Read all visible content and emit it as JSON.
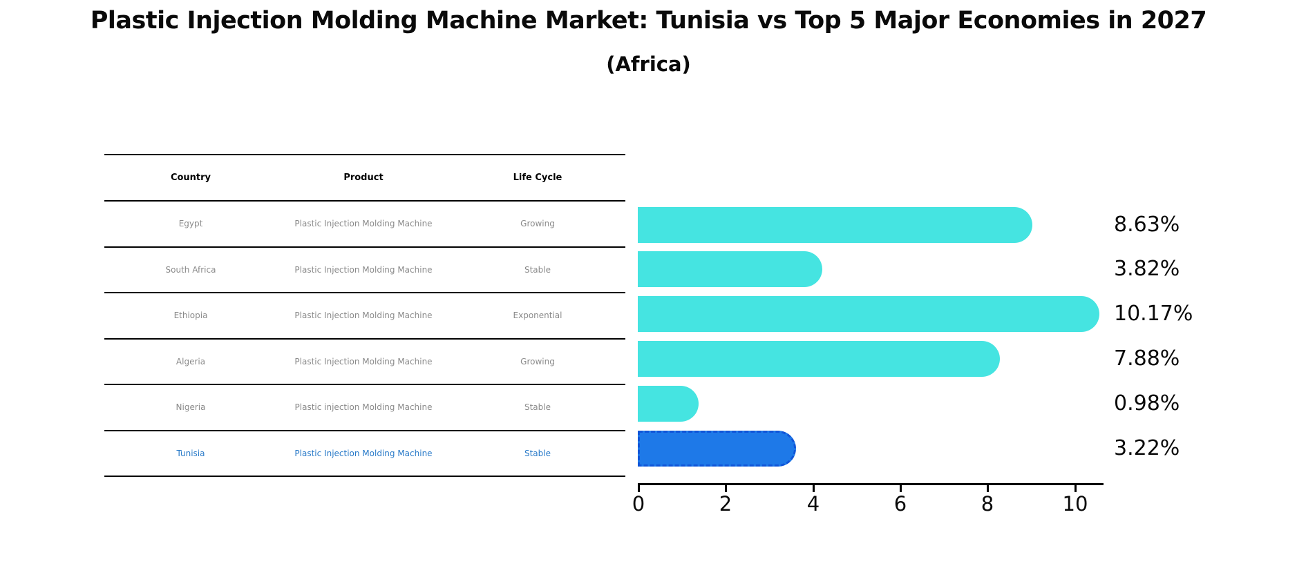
{
  "title": "Plastic Injection Molding Machine Market: Tunisia vs Top 5 Major Economies in 2027",
  "subtitle": "(Africa)",
  "table": {
    "headers": [
      "Country",
      "Product",
      "Life Cycle"
    ],
    "rows": [
      {
        "country": "Egypt",
        "product": "Plastic Injection Molding Machine",
        "life_cycle": "Growing",
        "highlight": false
      },
      {
        "country": "South Africa",
        "product": "Plastic Injection Molding Machine",
        "life_cycle": "Stable",
        "highlight": false
      },
      {
        "country": "Ethiopia",
        "product": "Plastic Injection Molding Machine",
        "life_cycle": "Exponential",
        "highlight": false
      },
      {
        "country": "Algeria",
        "product": "Plastic Injection Molding Machine",
        "life_cycle": "Growing",
        "highlight": false
      },
      {
        "country": "Nigeria",
        "product": "Plastic injection Molding Machine",
        "life_cycle": "Stable",
        "highlight": false
      },
      {
        "country": "Tunisia",
        "product": "Plastic Injection Molding Machine",
        "life_cycle": "Stable",
        "highlight": true
      }
    ]
  },
  "chart_data": {
    "type": "bar",
    "orientation": "horizontal",
    "title": "Plastic Injection Molding Machine Market: Tunisia vs Top 5 Major Economies in 2027 (Africa)",
    "categories": [
      "Egypt",
      "South Africa",
      "Ethiopia",
      "Algeria",
      "Nigeria",
      "Tunisia"
    ],
    "values": [
      8.63,
      3.82,
      10.17,
      7.88,
      0.98,
      3.22
    ],
    "value_labels": [
      "8.63%",
      "3.82%",
      "10.17%",
      "7.88%",
      "0.98%",
      "3.22%"
    ],
    "xlabel": "",
    "ylabel": "",
    "xlim": [
      0,
      10.67
    ],
    "xticks": [
      0,
      2,
      4,
      6,
      8,
      10
    ],
    "xtick_labels": [
      "0",
      "2",
      "4",
      "6",
      "8",
      "10"
    ],
    "grid": false,
    "legend": false,
    "bar_color": "#45E4E1",
    "highlight_color": "#1E79E8",
    "highlight_index": 5,
    "highlight_border_style": "dashed"
  },
  "colors": {
    "background": "#ffffff",
    "bar_cyan": "#45E4E1",
    "bar_blue": "#1E79E8",
    "table_text_gray": "#8a8a8a",
    "table_text_highlight": "#2779c8",
    "text_black": "#0a0a0a"
  }
}
